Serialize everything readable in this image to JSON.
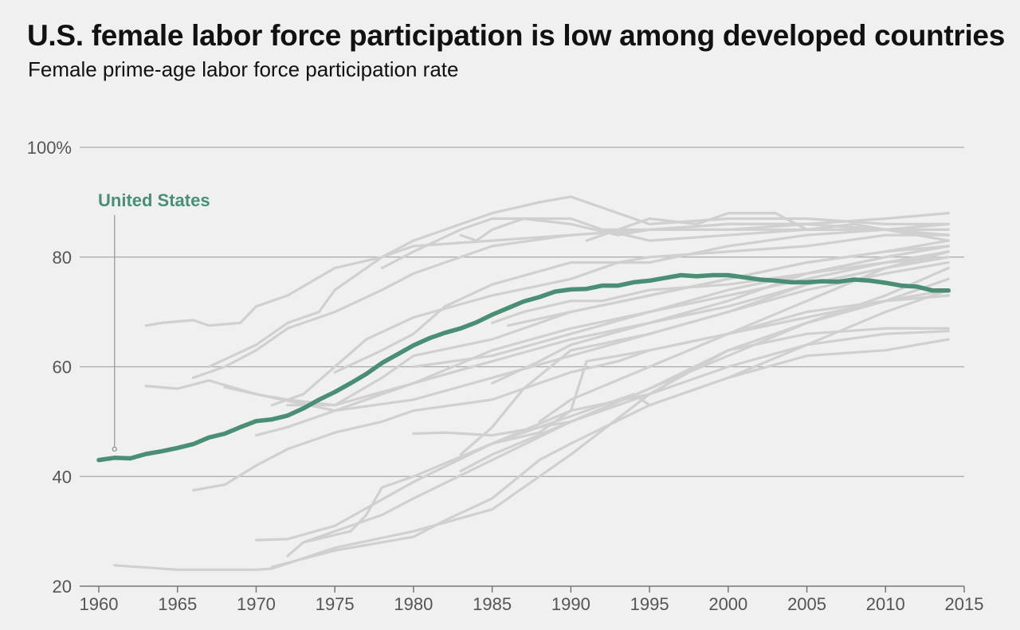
{
  "header": {
    "title": "U.S. female labor force participation is low among developed countries",
    "subtitle": "Female prime-age labor force participation rate"
  },
  "colors": {
    "highlight": "#4a8f75",
    "others": "#d0d0d0",
    "background": "#f0f0f0"
  },
  "chart_data": {
    "type": "line",
    "title": "U.S. female labor force participation is low among developed countries",
    "subtitle": "Female prime-age labor force participation rate",
    "xlabel": "",
    "ylabel": "",
    "xlim": [
      1959,
      2015
    ],
    "ylim": [
      20,
      100
    ],
    "x_ticks": [
      1960,
      1965,
      1970,
      1975,
      1980,
      1985,
      1990,
      1995,
      2000,
      2005,
      2010,
      2015
    ],
    "x_tick_labels": [
      "1960",
      "1965",
      "1970",
      "1975",
      "1980",
      "1985",
      "1990",
      "1995",
      "2000",
      "2005",
      "2010",
      "2015"
    ],
    "y_ticks": [
      20,
      40,
      60,
      80,
      100
    ],
    "y_tick_labels": [
      "20",
      "40",
      "60",
      "80",
      "100%"
    ],
    "grid": "horizontal",
    "annotation": {
      "text": "United States",
      "x": 1961,
      "y": 45
    },
    "highlight_series": {
      "name": "United States",
      "x": [
        1960,
        1961,
        1962,
        1963,
        1964,
        1965,
        1966,
        1967,
        1968,
        1969,
        1970,
        1971,
        1972,
        1973,
        1974,
        1975,
        1976,
        1977,
        1978,
        1979,
        1980,
        1981,
        1982,
        1983,
        1984,
        1985,
        1986,
        1987,
        1988,
        1989,
        1990,
        1991,
        1992,
        1993,
        1994,
        1995,
        1996,
        1997,
        1998,
        1999,
        2000,
        2001,
        2002,
        2003,
        2004,
        2005,
        2006,
        2007,
        2008,
        2009,
        2010,
        2011,
        2012,
        2013,
        2014
      ],
      "values": [
        43,
        43.4,
        43.3,
        44.1,
        44.6,
        45.2,
        45.9,
        47.1,
        47.8,
        49,
        50.1,
        50.4,
        51.1,
        52.4,
        54,
        55.4,
        57,
        58.7,
        60.7,
        62.3,
        63.9,
        65.2,
        66.2,
        67,
        68.1,
        69.5,
        70.7,
        71.9,
        72.7,
        73.7,
        74.1,
        74.2,
        74.8,
        74.8,
        75.4,
        75.7,
        76.2,
        76.7,
        76.5,
        76.7,
        76.7,
        76.3,
        75.9,
        75.7,
        75.4,
        75.4,
        75.6,
        75.5,
        75.9,
        75.7,
        75.3,
        74.8,
        74.6,
        73.9,
        73.9
      ]
    },
    "series": [
      {
        "x": [
          1961,
          1965,
          1970,
          1971,
          1975,
          1980,
          1985,
          1990,
          1995,
          2000,
          2005,
          2010,
          2014
        ],
        "values": [
          23.8,
          23,
          23,
          23.2,
          27,
          30,
          34,
          44,
          55,
          63,
          68,
          72,
          73
        ]
      },
      {
        "x": [
          1971,
          1973,
          1975,
          1980,
          1982,
          1985,
          1988,
          1990,
          1995,
          2000,
          2005,
          2010,
          2014
        ],
        "values": [
          23.5,
          25,
          26.5,
          29,
          32,
          36,
          43,
          46,
          53,
          58,
          62,
          63,
          65
        ]
      },
      {
        "x": [
          1970,
          1972,
          1975,
          1980,
          1985,
          1988,
          1990,
          1995,
          2000,
          2005,
          2010,
          2014
        ],
        "values": [
          28.4,
          28.6,
          31,
          39,
          46,
          48,
          52,
          55,
          63,
          66,
          67,
          67
        ]
      },
      {
        "x": [
          1972,
          1973,
          1975,
          1978,
          1980,
          1985,
          1990,
          1995,
          2000,
          2005,
          2010,
          2014
        ],
        "values": [
          25.5,
          28,
          30,
          33,
          36,
          43,
          50,
          55,
          60,
          64,
          66,
          66.5
        ]
      },
      {
        "x": [
          1966,
          1968,
          1970,
          1972,
          1975,
          1978,
          1980,
          1985,
          1990,
          1993,
          1995,
          2000,
          2005,
          2010,
          2014
        ],
        "values": [
          37.5,
          38.5,
          42,
          45,
          48,
          50,
          52,
          54,
          59,
          61,
          63,
          66,
          70,
          72,
          73
        ]
      },
      {
        "x": [
          1973,
          1976,
          1977,
          1978,
          1980,
          1985,
          1990,
          1991,
          1995,
          2000,
          2005,
          2010,
          2014
        ],
        "values": [
          28,
          30,
          33,
          38,
          40,
          46,
          52,
          61,
          63,
          66,
          69,
          72,
          74
        ]
      },
      {
        "x": [
          1980,
          1982,
          1985,
          1990,
          1995,
          2000,
          2005,
          2010,
          2014
        ],
        "values": [
          47.8,
          48,
          47.5,
          50,
          56,
          63,
          68,
          72,
          76
        ]
      },
      {
        "x": [
          1983,
          1985,
          1990,
          1995,
          2000,
          2005,
          2010,
          2014
        ],
        "values": [
          41,
          44,
          50,
          56,
          62,
          68,
          73,
          78
        ]
      },
      {
        "x": [
          1983,
          1985,
          1987,
          1990,
          1995,
          2000,
          2005,
          2010,
          2014
        ],
        "values": [
          44,
          49,
          56,
          63,
          66,
          70,
          75,
          78,
          81
        ]
      },
      {
        "x": [
          1963,
          1965,
          1967,
          1970,
          1975,
          1980,
          1985,
          1990,
          1995,
          2000,
          2005,
          2010,
          2014
        ],
        "values": [
          56.5,
          56,
          57.5,
          55,
          52,
          54,
          58,
          62,
          66,
          70,
          74,
          77,
          79
        ]
      },
      {
        "x": [
          1968,
          1970,
          1972,
          1975,
          1980,
          1985,
          1990,
          1995,
          2000,
          2005,
          2010,
          2014
        ],
        "values": [
          56.3,
          55,
          54,
          53,
          57,
          61,
          65,
          68,
          71,
          75,
          78,
          80
        ]
      },
      {
        "x": [
          1970,
          1972,
          1975,
          1977,
          1980,
          1985,
          1990,
          1995,
          2000,
          2005,
          2010,
          2014
        ],
        "values": [
          47.5,
          49,
          52,
          54,
          57,
          63,
          67,
          70,
          74,
          77,
          79,
          80
        ]
      },
      {
        "x": [
          1972,
          1975,
          1978,
          1980,
          1985,
          1990,
          1995,
          2000,
          2005,
          2010,
          2014
        ],
        "values": [
          53,
          53,
          58,
          62,
          65,
          70,
          73,
          76,
          79,
          81,
          82
        ]
      },
      {
        "x": [
          1963,
          1964,
          1966,
          1967,
          1969,
          1970,
          1972,
          1975,
          1978,
          1980,
          1985,
          1990,
          1995,
          2000,
          2005,
          2010,
          2014
        ],
        "values": [
          67.5,
          68,
          68.5,
          67.5,
          68,
          71,
          73,
          78,
          80,
          82,
          83,
          84,
          85,
          85,
          85,
          85,
          84
        ]
      },
      {
        "x": [
          1966,
          1968,
          1970,
          1972,
          1975,
          1978,
          1980,
          1985,
          1990,
          1995,
          2000,
          2005,
          2010,
          2014
        ],
        "values": [
          58,
          60,
          63,
          67,
          70,
          74,
          77,
          82,
          84,
          85,
          86,
          86,
          85,
          84
        ]
      },
      {
        "x": [
          1967,
          1970,
          1972,
          1974,
          1975,
          1978,
          1980,
          1985,
          1988,
          1990,
          1995,
          2000,
          2005,
          2010,
          2014
        ],
        "values": [
          60,
          64,
          68,
          70,
          74,
          80,
          83,
          88,
          90,
          91,
          86,
          87,
          87,
          86,
          86
        ]
      },
      {
        "x": [
          1971,
          1973,
          1975,
          1977,
          1980,
          1985,
          1990,
          1993,
          1995,
          2000,
          2005,
          2010,
          2014
        ],
        "values": [
          53,
          55,
          60,
          65,
          69,
          73,
          76,
          79,
          80,
          81,
          82,
          84,
          84
        ]
      },
      {
        "x": [
          1975,
          1978,
          1980,
          1982,
          1985,
          1990,
          1995,
          2000,
          2005,
          2010,
          2014
        ],
        "values": [
          59,
          63,
          66,
          71,
          75,
          79,
          79,
          82,
          84,
          85,
          85
        ]
      },
      {
        "x": [
          1978,
          1980,
          1983,
          1985,
          1987,
          1990,
          1993,
          1995,
          2000,
          2005,
          2010,
          2014
        ],
        "values": [
          78,
          81,
          85,
          87,
          87,
          86,
          84,
          85,
          86,
          86,
          85,
          85
        ]
      },
      {
        "x": [
          1983,
          1984,
          1985,
          1987,
          1990,
          1992,
          1995,
          2000,
          2005,
          2010,
          2014
        ],
        "values": [
          84,
          83,
          85,
          87,
          87,
          85,
          83,
          84,
          85,
          85,
          86
        ]
      },
      {
        "x": [
          1991,
          1993,
          1995,
          1998,
          2000,
          2003,
          2005,
          2008,
          2010,
          2014
        ],
        "values": [
          83,
          85,
          87,
          86,
          88,
          88,
          85,
          86,
          85,
          83
        ]
      },
      {
        "x": [
          1992,
          1995,
          2000,
          2005,
          2010,
          2014
        ],
        "values": [
          85,
          85,
          85,
          86,
          87,
          88
        ]
      },
      {
        "x": [
          1985,
          1987,
          1990,
          1992,
          1995,
          2000,
          2005,
          2010,
          2014
        ],
        "values": [
          68,
          70,
          72,
          72,
          74,
          75,
          77,
          80,
          82
        ]
      },
      {
        "x": [
          1986,
          1990,
          1995,
          2000,
          2005,
          2010,
          2014
        ],
        "values": [
          67.5,
          70,
          73,
          76,
          79,
          81,
          83
        ]
      },
      {
        "x": [
          1980,
          1985,
          1990,
          1995,
          2000,
          2005,
          2010,
          2014
        ],
        "values": [
          60,
          62,
          66,
          70,
          73,
          76,
          79,
          81
        ]
      },
      {
        "x": [
          1985,
          1988,
          1990,
          1995,
          2000,
          2005,
          2010,
          2014
        ],
        "values": [
          57,
          61,
          64,
          68,
          72,
          77,
          80,
          82
        ]
      },
      {
        "x": [
          1988,
          1990,
          1995,
          2000,
          2005,
          2010,
          2014
        ],
        "values": [
          50,
          54,
          60,
          66,
          72,
          78,
          81
        ]
      },
      {
        "x": [
          1986,
          1990,
          1994,
          1995,
          2000,
          2005,
          2010,
          2014
        ],
        "values": [
          47,
          51,
          55,
          53,
          58,
          64,
          70,
          74
        ]
      }
    ]
  }
}
